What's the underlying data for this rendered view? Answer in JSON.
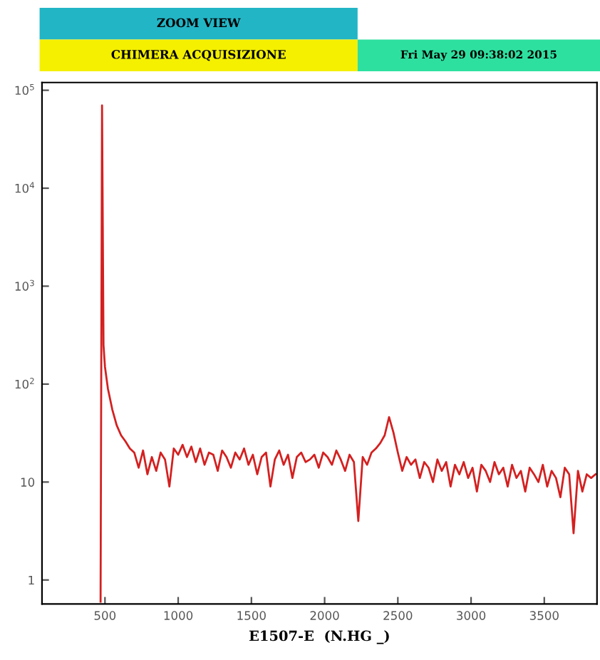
{
  "chart_data": {
    "type": "line",
    "title": "ZOOM VIEW",
    "subtitle": "CHIMERA ACQUISIZIONE",
    "annotations": [
      "Fri May 29 09:38:02 2015"
    ],
    "xlabel": "E1507-E  (N.HG _)",
    "log": "y",
    "grid": false,
    "marker": "none",
    "line_style": "solid",
    "xlim": [
      70,
      3860
    ],
    "ylim": [
      0.57,
      120000
    ],
    "xticks": [
      500,
      1000,
      1500,
      2000,
      2500,
      3000,
      3500
    ],
    "yticks": [
      1,
      10,
      {
        "value": 100,
        "label": "10$^{2}$"
      },
      {
        "value": 1000,
        "label": "10$^{3}$"
      },
      {
        "value": 10000,
        "label": "10$^{4}$"
      },
      {
        "value": 100000,
        "label": "10$^{5}$"
      }
    ],
    "series": [
      {
        "color": "#d42020",
        "x": [
          470,
          480,
          490,
          500,
          520,
          550,
          580,
          610,
          640,
          670,
          700,
          730,
          760,
          790,
          820,
          850,
          880,
          910,
          940,
          970,
          1000,
          1030,
          1060,
          1090,
          1120,
          1150,
          1180,
          1210,
          1240,
          1270,
          1300,
          1330,
          1360,
          1390,
          1420,
          1450,
          1480,
          1510,
          1540,
          1570,
          1600,
          1630,
          1660,
          1690,
          1720,
          1750,
          1780,
          1810,
          1840,
          1870,
          1900,
          1930,
          1960,
          1990,
          2020,
          2050,
          2080,
          2110,
          2140,
          2170,
          2200,
          2230,
          2260,
          2290,
          2320,
          2350,
          2380,
          2410,
          2440,
          2470,
          2500,
          2530,
          2560,
          2590,
          2620,
          2650,
          2680,
          2710,
          2740,
          2770,
          2800,
          2830,
          2860,
          2890,
          2920,
          2950,
          2980,
          3010,
          3040,
          3070,
          3100,
          3130,
          3160,
          3190,
          3220,
          3250,
          3280,
          3310,
          3340,
          3370,
          3400,
          3430,
          3460,
          3490,
          3520,
          3550,
          3580,
          3610,
          3640,
          3670,
          3700,
          3730,
          3760,
          3790,
          3820,
          3850
        ],
        "values": [
          0.6,
          70000,
          250,
          150,
          90,
          55,
          38,
          30,
          26,
          22,
          20,
          14,
          21,
          12,
          18,
          13,
          20,
          17,
          9,
          22,
          19,
          24,
          18,
          23,
          16,
          22,
          15,
          20,
          19,
          13,
          21,
          18,
          14,
          20,
          17,
          22,
          15,
          19,
          12,
          18,
          20,
          9,
          17,
          21,
          15,
          19,
          11,
          18,
          20,
          16,
          17,
          19,
          14,
          20,
          18,
          15,
          21,
          17,
          13,
          19,
          16,
          4,
          18,
          15,
          20,
          22,
          25,
          30,
          46,
          32,
          20,
          13,
          18,
          15,
          17,
          11,
          16,
          14,
          10,
          17,
          13,
          16,
          9,
          15,
          12,
          16,
          11,
          14,
          8,
          15,
          13,
          10,
          16,
          12,
          14,
          9,
          15,
          11,
          13,
          8,
          14,
          12,
          10,
          15,
          9,
          13,
          11,
          7,
          14,
          12,
          3,
          13,
          8,
          12,
          11,
          12
        ]
      }
    ]
  }
}
